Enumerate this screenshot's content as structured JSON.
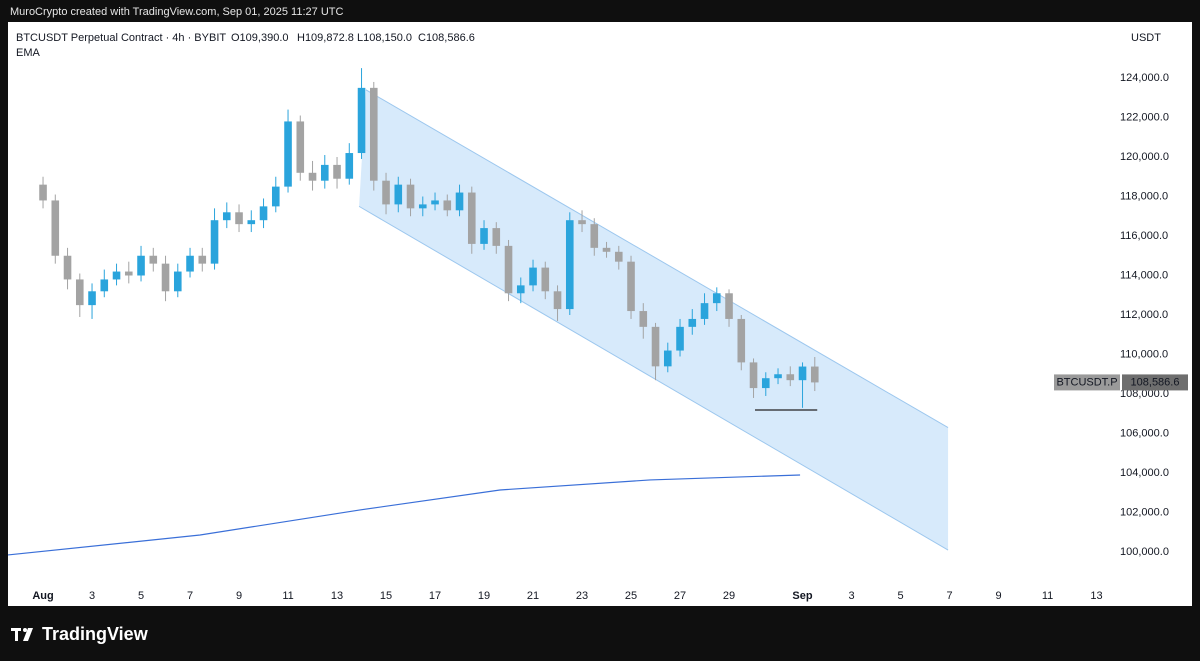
{
  "header": "MuroCrypto created with TradingView.com, Sep 01, 2025 11:27 UTC",
  "footer": {
    "brand": "TradingView"
  },
  "chart_data": {
    "type": "candlestick",
    "title": "BTCUSDT Perpetual Contract · 4h · BYBIT",
    "ohlc_text": [
      "O109,390.0",
      "H109,872.8",
      "L108,150.0",
      "C108,586.6"
    ],
    "indicator": "EMA",
    "currency": "USDT",
    "up_color": "#2aa4dc",
    "down_color": "#a3a3a3",
    "grid": false,
    "xlim": [
      -0.43,
      44.55
    ],
    "ylim": [
      97266,
      126835
    ],
    "xticks": [
      {
        "value": 1,
        "label": "Aug"
      },
      3,
      5,
      7,
      9,
      11,
      13,
      15,
      17,
      19,
      21,
      23,
      25,
      27,
      29,
      {
        "value": 32,
        "label": "Sep"
      },
      {
        "value": 34,
        "label": "3"
      },
      {
        "value": 36,
        "label": "5"
      },
      {
        "value": 38,
        "label": "7"
      },
      {
        "value": 40,
        "label": "9"
      },
      {
        "value": 42,
        "label": "11"
      },
      {
        "value": 44,
        "label": "13"
      }
    ],
    "yticks": [
      {
        "value": 100000,
        "label": "100,000.0"
      },
      {
        "value": 102000,
        "label": "102,000.0"
      },
      {
        "value": 104000,
        "label": "104,000.0"
      },
      {
        "value": 106000,
        "label": "106,000.0"
      },
      {
        "value": 108000,
        "label": "108,000.0"
      },
      {
        "value": 110000,
        "label": "110,000.0"
      },
      {
        "value": 112000,
        "label": "112,000.0"
      },
      {
        "value": 114000,
        "label": "114,000.0"
      },
      {
        "value": 116000,
        "label": "116,000.0"
      },
      {
        "value": 118000,
        "label": "118,000.0"
      },
      {
        "value": 120000,
        "label": "120,000.0"
      },
      {
        "value": 122000,
        "label": "122,000.0"
      },
      {
        "value": 124000,
        "label": "124,000.0"
      }
    ],
    "x": [
      1,
      1.5,
      2,
      2.5,
      3,
      3.5,
      4,
      4.5,
      5,
      5.5,
      6,
      6.5,
      7,
      7.5,
      8,
      8.5,
      9,
      9.5,
      10,
      10.5,
      11,
      11.5,
      12,
      12.5,
      13,
      13.5,
      14,
      14.5,
      15,
      15.5,
      16,
      16.5,
      17,
      17.5,
      18,
      18.5,
      19,
      19.5,
      20,
      20.5,
      21,
      21.5,
      22,
      22.5,
      23,
      23.5,
      24,
      24.5,
      25,
      25.5,
      26,
      26.5,
      27,
      27.5,
      28,
      28.5,
      29,
      29.5,
      30,
      30.5,
      31,
      31.5,
      32,
      32.5
    ],
    "open": [
      118600,
      117800,
      115000,
      113800,
      112500,
      113200,
      113800,
      114200,
      114000,
      115000,
      114600,
      113200,
      114200,
      115000,
      114600,
      116800,
      117200,
      116600,
      116800,
      117500,
      118500,
      121800,
      119200,
      118800,
      119600,
      118900,
      120200,
      123500,
      118800,
      117600,
      118600,
      117400,
      117600,
      117800,
      117300,
      118200,
      115600,
      116400,
      115500,
      113100,
      113500,
      114400,
      113200,
      112300,
      116800,
      116600,
      115400,
      115200,
      114700,
      112200,
      111400,
      109400,
      110200,
      111400,
      111800,
      112600,
      113100,
      111800,
      109600,
      108300,
      108800,
      109000,
      108700,
      109390
    ],
    "high": [
      119000,
      118100,
      115400,
      114100,
      113600,
      114300,
      114600,
      114700,
      115500,
      115400,
      115000,
      114600,
      115400,
      115400,
      117400,
      117700,
      117600,
      117300,
      117900,
      119000,
      122400,
      122100,
      119800,
      120100,
      120000,
      120700,
      124500,
      123800,
      119200,
      119000,
      118900,
      118000,
      118200,
      118100,
      118600,
      118500,
      116800,
      116700,
      115800,
      113900,
      114800,
      114700,
      113500,
      117200,
      117300,
      116900,
      115700,
      115500,
      115000,
      112600,
      111600,
      110600,
      111800,
      112300,
      113100,
      113400,
      113300,
      112000,
      109800,
      109100,
      109300,
      109400,
      109600,
      109872.8
    ],
    "low": [
      117400,
      114600,
      113300,
      111900,
      111800,
      112900,
      113500,
      113600,
      113700,
      114200,
      112700,
      112900,
      113900,
      114200,
      114300,
      116400,
      116200,
      116200,
      116400,
      117200,
      118200,
      118800,
      118300,
      118400,
      118400,
      118600,
      119900,
      118300,
      117100,
      117200,
      117000,
      117000,
      117300,
      117000,
      117000,
      115100,
      115300,
      115100,
      112700,
      112600,
      113200,
      112800,
      111700,
      112000,
      116200,
      115000,
      114900,
      114300,
      111800,
      110800,
      108700,
      109100,
      109900,
      111000,
      111500,
      112200,
      111400,
      109200,
      107800,
      107900,
      108500,
      108400,
      107300,
      108150
    ],
    "close": [
      117800,
      115000,
      113800,
      112500,
      113200,
      113800,
      114200,
      114000,
      115000,
      114600,
      113200,
      114200,
      115000,
      114600,
      116800,
      117200,
      116600,
      116800,
      117500,
      118500,
      121800,
      119200,
      118800,
      119600,
      118900,
      120200,
      123500,
      118800,
      117600,
      118600,
      117400,
      117600,
      117800,
      117300,
      118200,
      115600,
      116400,
      115500,
      113100,
      113500,
      114400,
      113200,
      112300,
      116800,
      116600,
      115400,
      115200,
      114700,
      112200,
      111400,
      109400,
      110200,
      111400,
      111800,
      112600,
      113100,
      111800,
      109600,
      108300,
      108800,
      109000,
      108700,
      109390,
      108586.6
    ],
    "ema": {
      "color": "#3a6fd8",
      "x": [
        -0.43,
        7.41,
        13.94,
        19.65,
        25.78,
        31.9
      ],
      "values": [
        99850,
        100860,
        102130,
        103140,
        103650,
        103900
      ]
    },
    "channel": {
      "color": "#bcdcf8",
      "upper_x": [
        14.18,
        37.94
      ],
      "upper": [
        123400,
        106300
      ],
      "lower_x": [
        13.9,
        37.94
      ],
      "lower": [
        117500,
        100100
      ]
    },
    "support": {
      "x": [
        30.06,
        32.6
      ],
      "value": 107190
    },
    "last_price": {
      "symbol": "BTCUSDT.P",
      "value": 108586.6,
      "label": "108,586.6"
    }
  }
}
